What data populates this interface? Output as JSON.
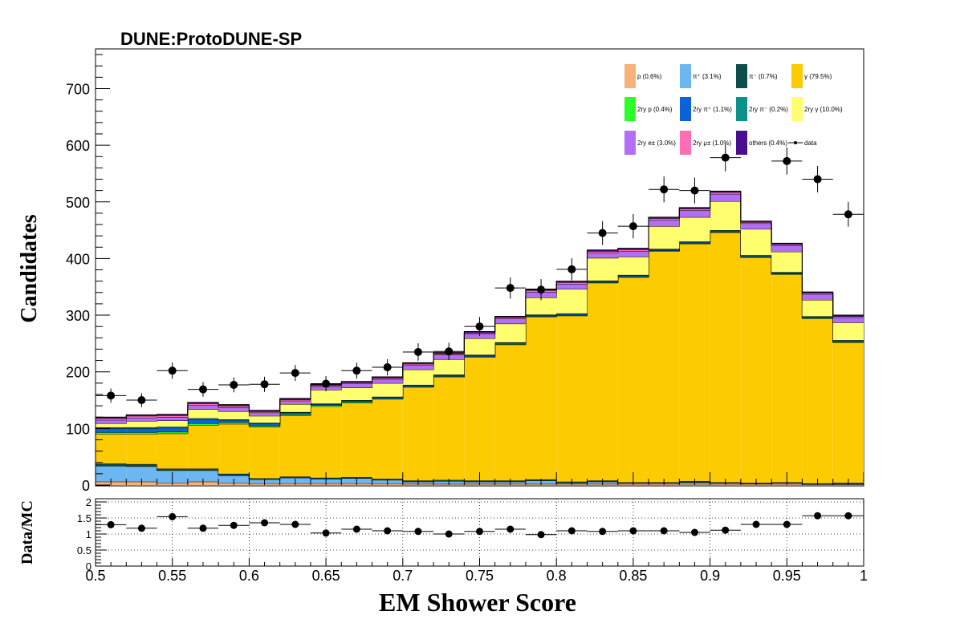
{
  "chart_data": {
    "type": "bar",
    "stacked": true,
    "title": "DUNE:ProtoDUNE-SP",
    "xlabel": "EM Shower Score",
    "ylabel": "Candidates",
    "xlim": [
      0.5,
      1.0
    ],
    "ylim": [
      0,
      770
    ],
    "x_ticks": [
      "0.5",
      "0.55",
      "0.6",
      "0.65",
      "0.7",
      "0.75",
      "0.8",
      "0.85",
      "0.9",
      "0.95",
      "1"
    ],
    "y_ticks": [
      "0",
      "100",
      "200",
      "300",
      "400",
      "500",
      "600",
      "700"
    ],
    "bin_edges": [
      0.5,
      0.52,
      0.54,
      0.56,
      0.58,
      0.6,
      0.62,
      0.64,
      0.66,
      0.68,
      0.7,
      0.72,
      0.74,
      0.76,
      0.78,
      0.8,
      0.82,
      0.84,
      0.86,
      0.88,
      0.9,
      0.92,
      0.94,
      0.96,
      0.98,
      1.0
    ],
    "series": [
      {
        "name": "p (0.6%)",
        "color": "#f7b27a",
        "values": [
          6,
          6,
          4,
          6,
          4,
          3,
          3,
          3,
          3,
          3,
          2,
          2,
          2,
          2,
          2,
          2,
          2,
          2,
          2,
          2,
          2,
          2,
          2,
          1,
          1
        ]
      },
      {
        "name": "π⁺ (3.1%)",
        "color": "#6cb6f2",
        "values": [
          28,
          27,
          22,
          20,
          13,
          7,
          10,
          8,
          9,
          6,
          4,
          5,
          4,
          4,
          6,
          2,
          4,
          2,
          2,
          3,
          2,
          1,
          2,
          1,
          1
        ]
      },
      {
        "name": "π⁻ (0.7%)",
        "color": "#0d4d4a",
        "values": [
          4,
          4,
          3,
          3,
          3,
          2,
          2,
          2,
          2,
          2,
          2,
          2,
          2,
          2,
          2,
          2,
          2,
          1,
          1,
          2,
          1,
          1,
          1,
          1,
          2
        ]
      },
      {
        "name": "γ (79.5%)",
        "color": "#fdcb01",
        "values": [
          52,
          53,
          62,
          77,
          88,
          91,
          108,
          126,
          131,
          141,
          165,
          182,
          218,
          240,
          287,
          293,
          349,
          362,
          408,
          419,
          441,
          398,
          367,
          291,
          248
        ]
      },
      {
        "name": "2ry p (0.4%)",
        "color": "#2bff2b",
        "values": [
          3,
          3,
          3,
          3,
          3,
          2,
          2,
          2,
          2,
          1,
          1,
          1,
          1,
          1,
          1,
          1,
          1,
          1,
          1,
          1,
          1,
          1,
          1,
          1,
          1
        ]
      },
      {
        "name": "2ry π⁺ (1.1%)",
        "color": "#0a63d9",
        "values": [
          7,
          7,
          7,
          7,
          4,
          4,
          3,
          2,
          2,
          2,
          2,
          2,
          2,
          2,
          2,
          2,
          2,
          2,
          2,
          2,
          2,
          2,
          2,
          2,
          2
        ]
      },
      {
        "name": "2ry π⁻ (0.2%)",
        "color": "#0b9188",
        "values": [
          2,
          2,
          2,
          2,
          1,
          1,
          1,
          1,
          1,
          1,
          1,
          1,
          1,
          1,
          1,
          1,
          1,
          1,
          1,
          1,
          1,
          1,
          1,
          1,
          1
        ]
      },
      {
        "name": "2ry γ (10.0%)",
        "color": "#fefe6f",
        "values": [
          7,
          11,
          11,
          16,
          14,
          12,
          14,
          24,
          22,
          24,
          27,
          27,
          29,
          33,
          30,
          43,
          40,
          32,
          40,
          43,
          51,
          46,
          36,
          29,
          31
        ]
      },
      {
        "name": "2ry e± (3.0%)",
        "color": "#b36ef6",
        "values": [
          6,
          6,
          6,
          7,
          7,
          6,
          6,
          6,
          7,
          7,
          8,
          8,
          8,
          9,
          10,
          9,
          9,
          10,
          11,
          12,
          13,
          10,
          11,
          10,
          9
        ]
      },
      {
        "name": "2ry μ± (1.0%)",
        "color": "#ff6fb2",
        "values": [
          3,
          3,
          3,
          3,
          3,
          2,
          2,
          2,
          2,
          2,
          2,
          2,
          2,
          2,
          3,
          3,
          3,
          3,
          3,
          3,
          3,
          2,
          2,
          2,
          2
        ]
      },
      {
        "name": "others (0.4%)",
        "color": "#480e8e",
        "values": [
          2,
          2,
          2,
          2,
          2,
          2,
          2,
          2,
          2,
          2,
          2,
          2,
          2,
          2,
          2,
          2,
          2,
          2,
          2,
          2,
          2,
          2,
          2,
          2,
          2
        ]
      }
    ],
    "data_series": {
      "name": "data",
      "values": [
        158,
        150,
        202,
        169,
        177,
        178,
        198,
        179,
        202,
        208,
        235,
        236,
        280,
        348,
        345,
        381,
        445,
        457,
        522,
        520,
        578,
        null,
        572,
        540,
        478
      ]
    },
    "ratio_panel": {
      "ylabel": "Data/MC",
      "ylim": [
        0,
        2.1
      ],
      "y_ticks": [
        "0",
        "0.5",
        "1",
        "1.5",
        "2"
      ],
      "values": [
        1.29,
        1.18,
        1.54,
        1.18,
        1.27,
        1.35,
        1.3,
        1.03,
        1.15,
        1.1,
        1.08,
        1.0,
        1.08,
        1.15,
        0.98,
        1.1,
        1.08,
        1.1,
        1.1,
        1.05,
        1.12,
        1.3,
        1.3,
        1.57,
        1.57
      ]
    }
  }
}
